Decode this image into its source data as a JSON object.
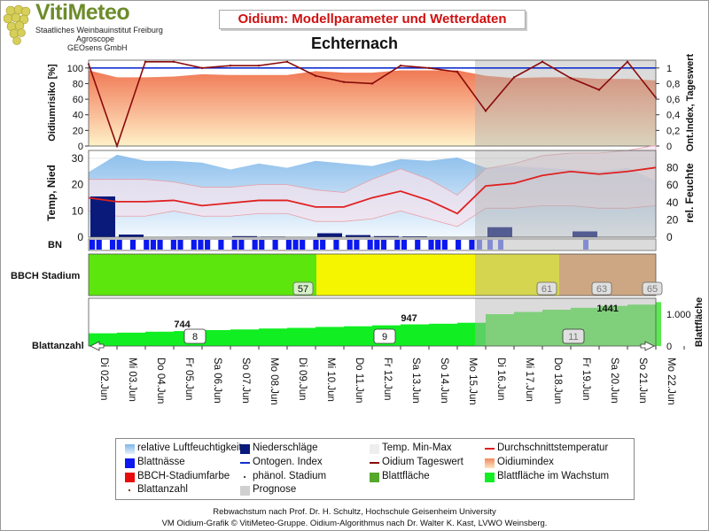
{
  "header": {
    "logo": "VitiMeteo",
    "logo_lines": [
      "Staatliches Weinbauinstitut Freiburg",
      "Agroscope",
      "GEOsens GmbH"
    ],
    "title": "Oidium: Modellparameter und Wetterdaten",
    "station": "Echternach"
  },
  "axes": {
    "oidium_left": "Oidiumrisiko [%]",
    "oidium_right": "Ont.Index, Tageswert",
    "weather_left": "Temp, Nied",
    "weather_right": "rel. Feuchte",
    "bn": "BN",
    "bbch": "BBCH Stadium",
    "blatt_left": "Blattanzahl",
    "blatt_right": "Blattfläche",
    "left_ticks_oidium": [
      "100",
      "80",
      "60",
      "40",
      "20",
      "0"
    ],
    "right_ticks_oidium": [
      "1",
      "0,8",
      "0,6",
      "0,4",
      "0,2",
      "0"
    ],
    "left_ticks_weather": [
      "30",
      "20",
      "10",
      "0"
    ],
    "right_ticks_weather": [
      "80",
      "60",
      "40",
      "20",
      "0"
    ],
    "right_ticks_blatt": [
      "1.000",
      "0"
    ]
  },
  "chart_data": {
    "type": "line",
    "x": [
      "Di 02.Jun",
      "Mi 03.Jun",
      "Do 04.Jun",
      "Fr 05.Jun",
      "Sa 06.Jun",
      "So 07.Jun",
      "Mo 08.Jun",
      "Di 09.Jun",
      "Mi 10.Jun",
      "Do 11.Jun",
      "Fr 12.Jun",
      "Sa 13.Jun",
      "So 14.Jun",
      "Mo 15.Jun",
      "Di 16.Jun",
      "Mi 17.Jun",
      "Do 18.Jun",
      "Fr 19.Jun",
      "Sa 20.Jun",
      "So 21.Jun",
      "Mo 22.Jun"
    ],
    "forecast_start_index": 14,
    "oidium": {
      "risk_percent": [
        97,
        88,
        88,
        89,
        92,
        91,
        91,
        91,
        96,
        94,
        94,
        97,
        97,
        97,
        90,
        87,
        88,
        88,
        86,
        86,
        84
      ],
      "ontogen_index": [
        1,
        1,
        1,
        1,
        1,
        1,
        1,
        1,
        1,
        1,
        1,
        1,
        1,
        1,
        1,
        1,
        1,
        1,
        1,
        1,
        1
      ],
      "tageswert": [
        1.05,
        0.0,
        1.08,
        1.08,
        1.0,
        1.03,
        1.03,
        1.08,
        0.9,
        0.82,
        0.8,
        1.03,
        1.0,
        0.95,
        0.45,
        0.88,
        1.08,
        0.87,
        0.72,
        1.08,
        0.62
      ],
      "ylim_left": [
        0,
        110
      ],
      "ylim_right": [
        0,
        1.1
      ]
    },
    "weather": {
      "rel_feuchte": [
        75,
        95,
        88,
        88,
        86,
        78,
        85,
        80,
        88,
        85,
        82,
        90,
        88,
        92,
        80,
        82,
        80,
        78,
        76,
        80,
        65
      ],
      "temp_avg": [
        15,
        13.5,
        13.5,
        14,
        12,
        13,
        14,
        14,
        11.5,
        11.5,
        15,
        17.5,
        14,
        9,
        19.5,
        20.5,
        23.5,
        25,
        24,
        25,
        26.5
      ],
      "temp_min": [
        10,
        8,
        8,
        10,
        8,
        8,
        9,
        9,
        6,
        6,
        7,
        10,
        7,
        4,
        11,
        11,
        12,
        12,
        11,
        11,
        12
      ],
      "temp_max": [
        22,
        22,
        22,
        21,
        19,
        19,
        20,
        20,
        18,
        17,
        22,
        26,
        22,
        16,
        26,
        28,
        31,
        32,
        32,
        33,
        35
      ],
      "niederschlag": [
        15.5,
        1.0,
        0,
        0.1,
        0,
        0.4,
        0.2,
        0,
        1.5,
        0.8,
        0.4,
        0.3,
        0,
        0,
        3.8,
        0,
        0,
        2.2,
        0,
        0,
        0
      ],
      "ylim_left": [
        0,
        33
      ],
      "ylim_right": [
        0,
        100
      ]
    },
    "bbch": {
      "stages": [
        {
          "value": "57",
          "from": 0,
          "to": 8,
          "color": "#5de50e"
        },
        {
          "value": "61",
          "from": 8,
          "to": 17,
          "color": "#f5f500"
        },
        {
          "value": "63",
          "from": 17,
          "to": 19,
          "color": "#e6a060"
        },
        {
          "value": "65",
          "from": 19,
          "to": 21,
          "color": "#e6a060"
        }
      ]
    },
    "blatt": {
      "blattflaeche": [
        0.4,
        0.42,
        0.45,
        0.47,
        0.5,
        0.52,
        0.55,
        0.57,
        0.6,
        0.62,
        0.65,
        0.68,
        0.7,
        0.73,
        1.0,
        1.07,
        1.14,
        1.2,
        1.26,
        1.3,
        1.38
      ],
      "annotations": [
        {
          "x": 3,
          "label": "744"
        },
        {
          "x": 11,
          "label": "947"
        },
        {
          "x": 18,
          "label": "1441"
        }
      ],
      "blattanzahl": [
        {
          "x": 4,
          "label": "8"
        },
        {
          "x": 11,
          "label": "9"
        },
        {
          "x": 18,
          "label": "11"
        }
      ],
      "ylim": [
        0,
        1.5
      ]
    }
  },
  "legend": [
    {
      "label": "relative Luftfeuchtigkeit",
      "color": "#a8cdf0"
    },
    {
      "label": "Niederschläge",
      "color": "#0a1a7a"
    },
    {
      "label": "Temp. Min-Max",
      "color": "#eeeeee"
    },
    {
      "label": "Durchschnittstemperatur",
      "color": "#e02020"
    },
    {
      "label": "Blattnässe",
      "color": "#0b18f0"
    },
    {
      "label": "Ontogen. Index",
      "color": "#1030d0"
    },
    {
      "label": "Oidium Tageswert",
      "color": "#8a0a0a"
    },
    {
      "label": "Oidiumindex",
      "color": "#f0a080"
    },
    {
      "label": "BBCH-Stadiumfarbe",
      "color": "#e80b0b"
    },
    {
      "label": "phänol. Stadium",
      "color": "#444444"
    },
    {
      "label": "Blattfläche",
      "color": "#55a82a"
    },
    {
      "label": "Blattfläche im Wachstum",
      "color": "#11ee22"
    },
    {
      "label": "Blattanzahl",
      "color": "#883300"
    },
    {
      "label": "Prognose",
      "color": "#d0d0d0"
    }
  ],
  "footer": [
    "Rebwachstum nach Prof. Dr. H. Schultz, Hochschule Geisenheim University",
    "VM Oidium-Grafik © VitiMeteo-Gruppe. Oidium-Algorithmus nach Dr. Walter K. Kast, LVWO Weinsberg."
  ]
}
